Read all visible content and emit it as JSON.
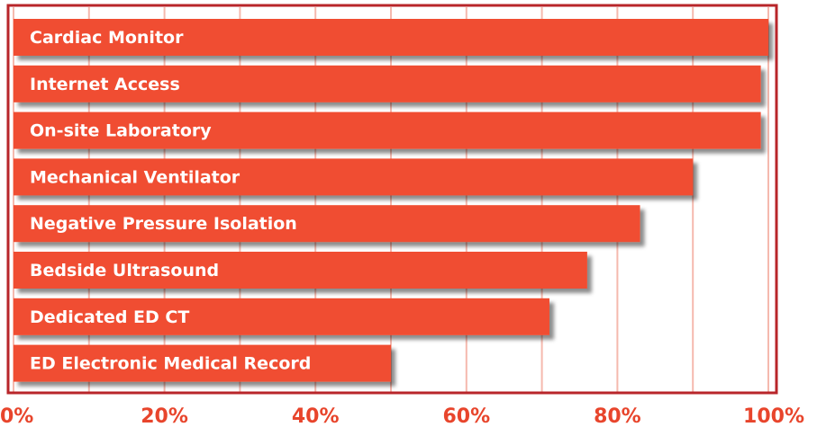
{
  "chart_data": {
    "type": "bar",
    "orientation": "horizontal",
    "categories": [
      "Cardiac Monitor",
      "Internet Access",
      "On-site Laboratory",
      "Mechanical Ventilator",
      "Negative Pressure Isolation",
      "Bedside Ultrasound",
      "Dedicated ED CT",
      "ED Electronic Medical Record"
    ],
    "values": [
      100,
      99,
      99,
      90,
      83,
      76,
      71,
      50
    ],
    "color": "#f04e30",
    "xlim": [
      0,
      100
    ],
    "xticks": [
      {
        "value": 0,
        "label": "0%"
      },
      {
        "value": 20,
        "label": "20%"
      },
      {
        "value": 40,
        "label": "40%"
      },
      {
        "value": 60,
        "label": "60%"
      },
      {
        "value": 80,
        "label": "80%"
      },
      {
        "value": 100,
        "label": "100%"
      }
    ],
    "minor_xticks": [
      10,
      30,
      50,
      70,
      90
    ],
    "grid": true
  }
}
